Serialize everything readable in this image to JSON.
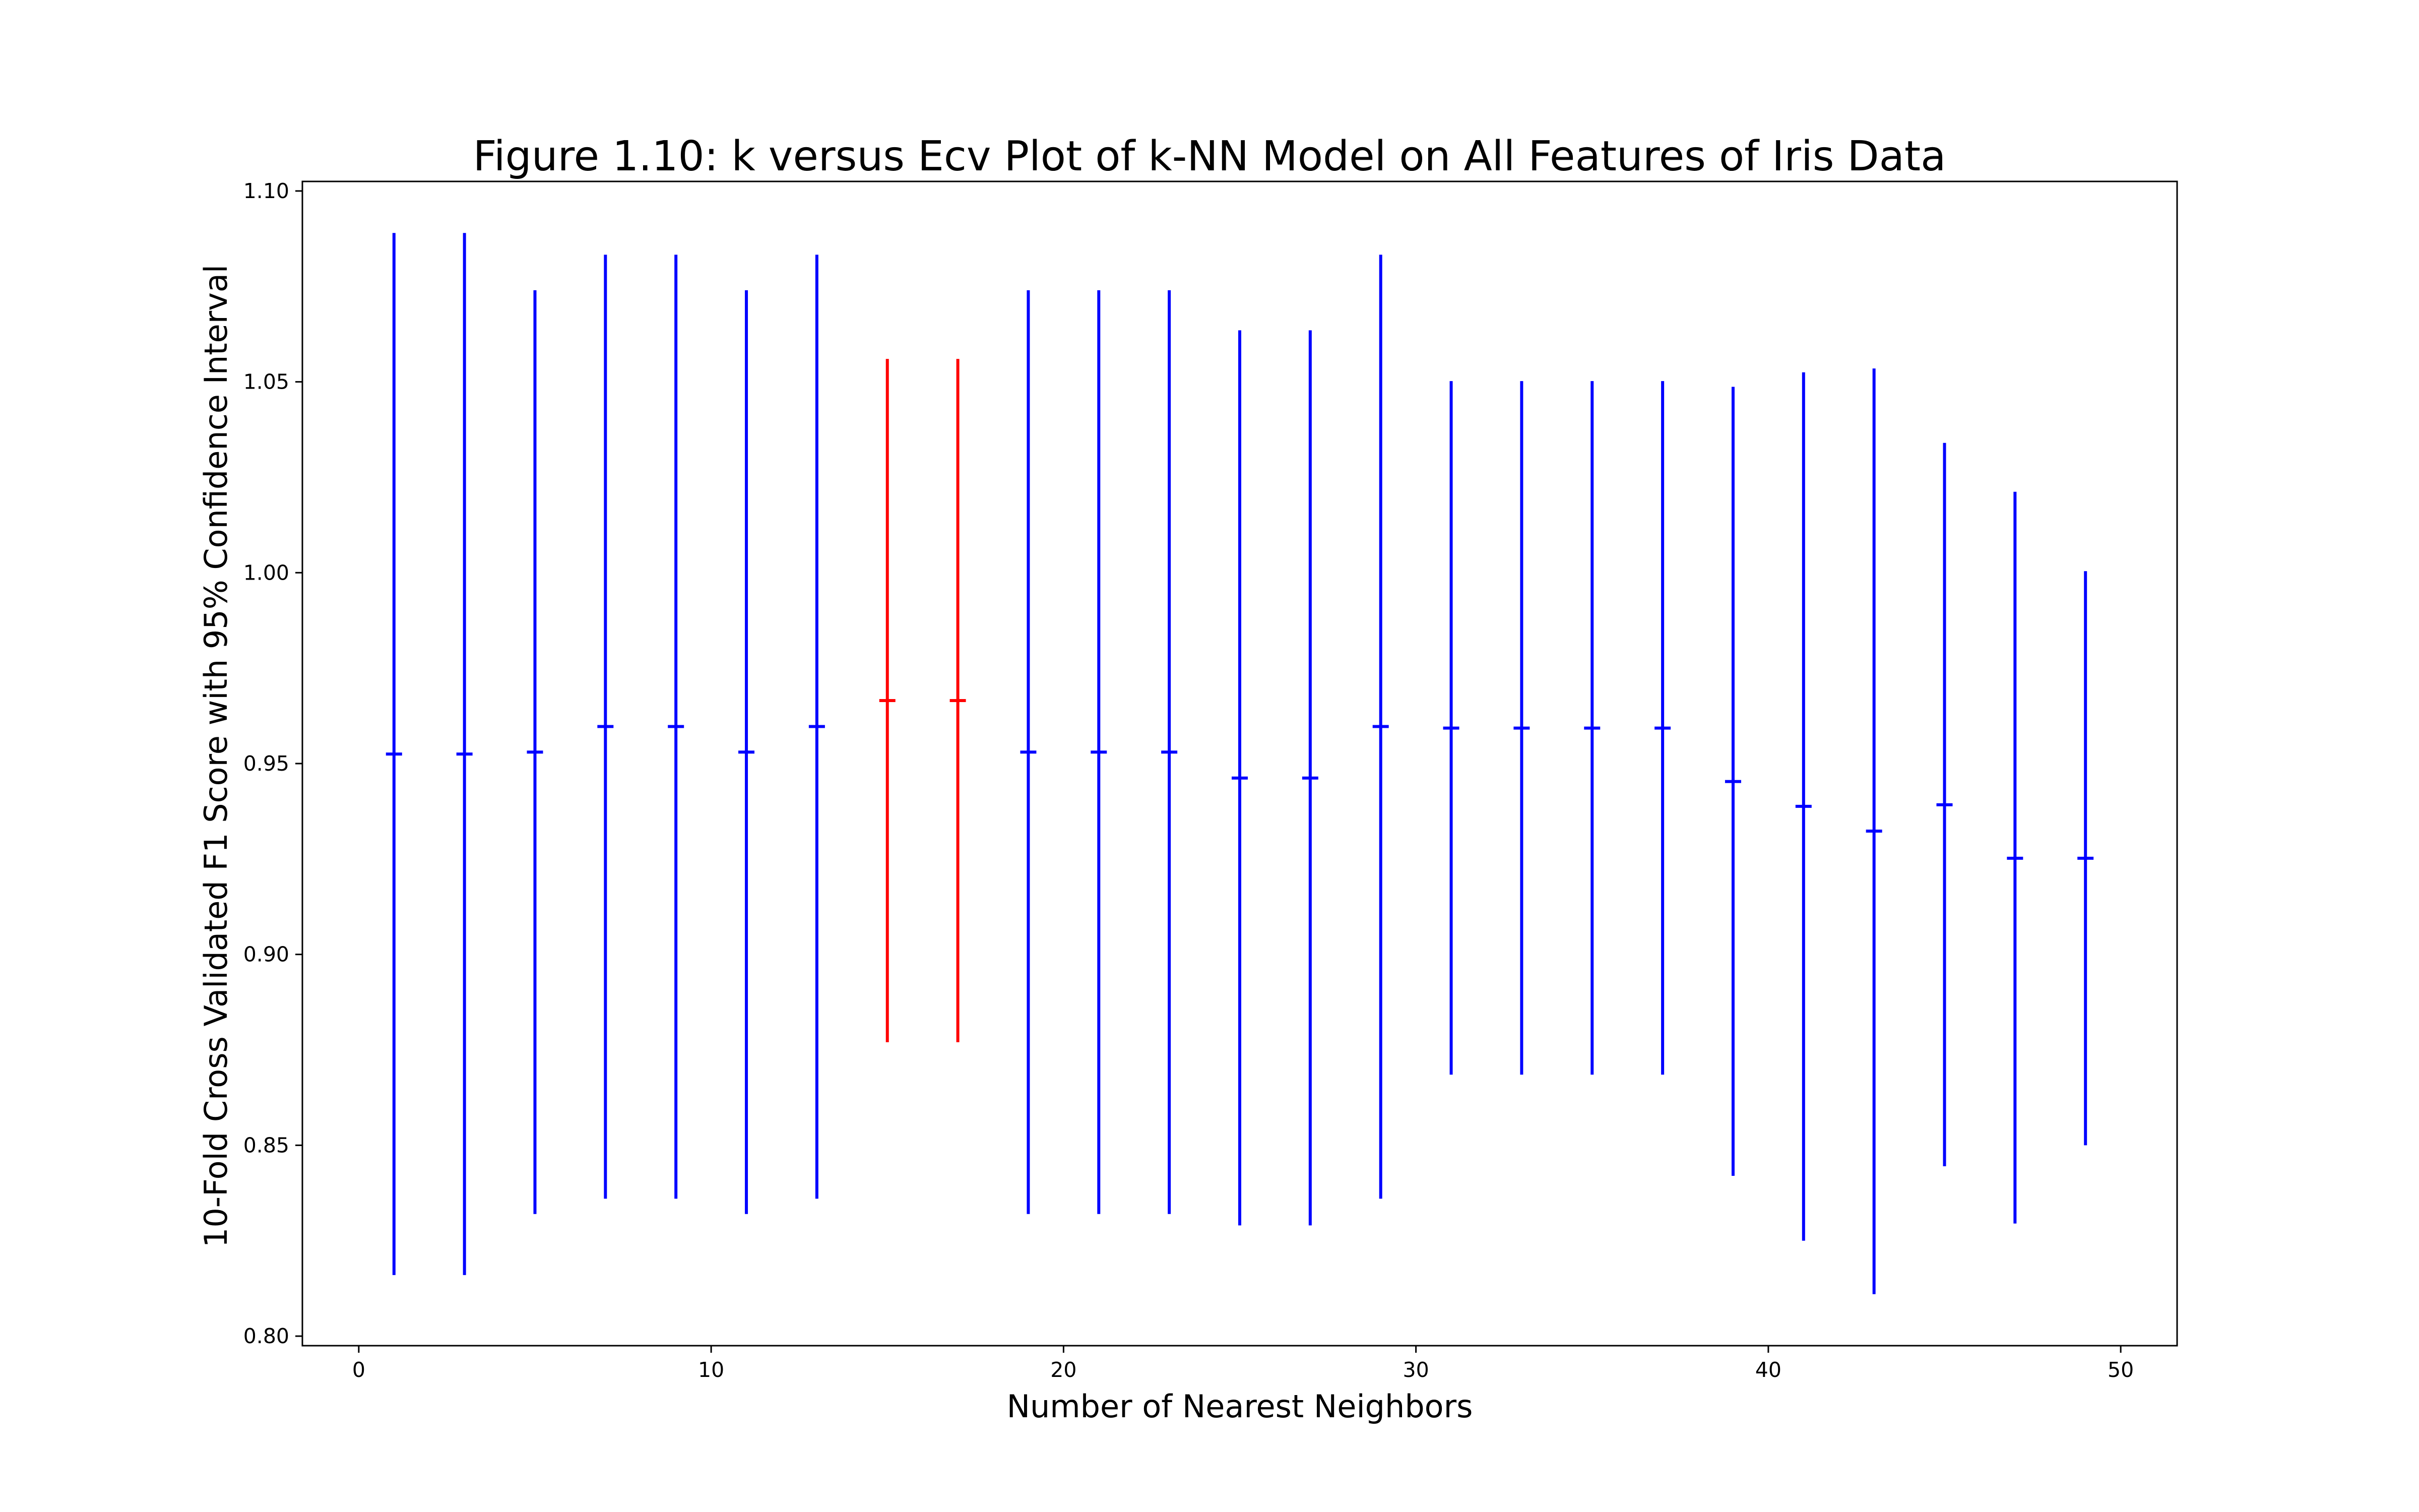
{
  "chart_data": {
    "type": "errorbar",
    "title": "Figure 1.10: k versus Ecv Plot of k-NN Model on All Features of Iris Data",
    "xlabel": "Number of Nearest Neighbors",
    "ylabel": "10-Fold Cross Validated F1 Score with 95% Confidence Interval",
    "xlim": [
      -1.6,
      51.6
    ],
    "ylim": [
      0.7975,
      1.1025
    ],
    "xticks": [
      0,
      10,
      20,
      30,
      40,
      50
    ],
    "yticks": [
      0.8,
      0.85,
      0.9,
      0.95,
      1.0,
      1.05,
      1.1
    ],
    "grid": false,
    "points": [
      {
        "k": 1,
        "mean": 0.9525,
        "low": 0.816,
        "high": 1.089,
        "color": "#0000ff"
      },
      {
        "k": 3,
        "mean": 0.9525,
        "low": 0.816,
        "high": 1.089,
        "color": "#0000ff"
      },
      {
        "k": 5,
        "mean": 0.953,
        "low": 0.832,
        "high": 1.074,
        "color": "#0000ff"
      },
      {
        "k": 7,
        "mean": 0.9597,
        "low": 0.836,
        "high": 1.0833,
        "color": "#0000ff"
      },
      {
        "k": 9,
        "mean": 0.9597,
        "low": 0.836,
        "high": 1.0833,
        "color": "#0000ff"
      },
      {
        "k": 11,
        "mean": 0.953,
        "low": 0.832,
        "high": 1.074,
        "color": "#0000ff"
      },
      {
        "k": 13,
        "mean": 0.9597,
        "low": 0.836,
        "high": 1.0833,
        "color": "#0000ff"
      },
      {
        "k": 15,
        "mean": 0.9665,
        "low": 0.877,
        "high": 1.056,
        "color": "#ff0000"
      },
      {
        "k": 17,
        "mean": 0.9665,
        "low": 0.877,
        "high": 1.056,
        "color": "#ff0000"
      },
      {
        "k": 19,
        "mean": 0.953,
        "low": 0.832,
        "high": 1.074,
        "color": "#0000ff"
      },
      {
        "k": 21,
        "mean": 0.953,
        "low": 0.832,
        "high": 1.074,
        "color": "#0000ff"
      },
      {
        "k": 23,
        "mean": 0.953,
        "low": 0.832,
        "high": 1.074,
        "color": "#0000ff"
      },
      {
        "k": 25,
        "mean": 0.9462,
        "low": 0.829,
        "high": 1.0635,
        "color": "#0000ff"
      },
      {
        "k": 27,
        "mean": 0.9462,
        "low": 0.829,
        "high": 1.0635,
        "color": "#0000ff"
      },
      {
        "k": 29,
        "mean": 0.9597,
        "low": 0.836,
        "high": 1.0833,
        "color": "#0000ff"
      },
      {
        "k": 31,
        "mean": 0.9593,
        "low": 0.8685,
        "high": 1.0502,
        "color": "#0000ff"
      },
      {
        "k": 33,
        "mean": 0.9593,
        "low": 0.8685,
        "high": 1.0502,
        "color": "#0000ff"
      },
      {
        "k": 35,
        "mean": 0.9593,
        "low": 0.8685,
        "high": 1.0502,
        "color": "#0000ff"
      },
      {
        "k": 37,
        "mean": 0.9593,
        "low": 0.8685,
        "high": 1.0502,
        "color": "#0000ff"
      },
      {
        "k": 39,
        "mean": 0.9453,
        "low": 0.842,
        "high": 1.0487,
        "color": "#0000ff"
      },
      {
        "k": 41,
        "mean": 0.9388,
        "low": 0.825,
        "high": 1.0525,
        "color": "#0000ff"
      },
      {
        "k": 43,
        "mean": 0.9323,
        "low": 0.811,
        "high": 1.0535,
        "color": "#0000ff"
      },
      {
        "k": 45,
        "mean": 0.9392,
        "low": 0.8445,
        "high": 1.034,
        "color": "#0000ff"
      },
      {
        "k": 47,
        "mean": 0.9252,
        "low": 0.8295,
        "high": 1.0212,
        "color": "#0000ff"
      },
      {
        "k": 49,
        "mean": 0.9252,
        "low": 0.85,
        "high": 1.0004,
        "color": "#0000ff"
      }
    ]
  }
}
